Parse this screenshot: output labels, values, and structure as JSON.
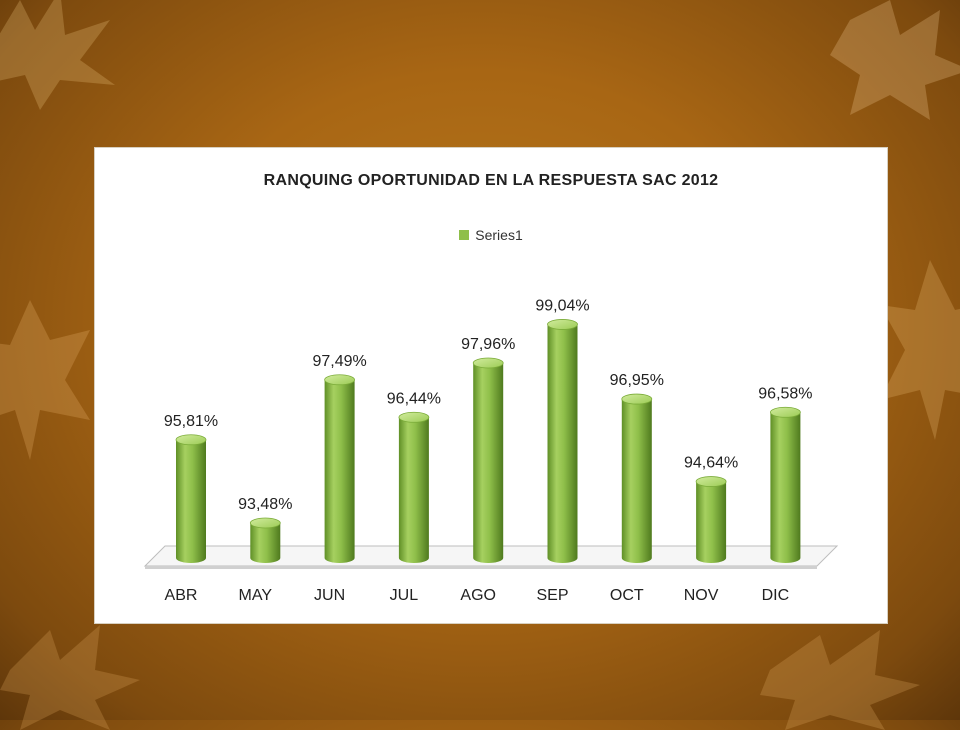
{
  "colors": {
    "bar": "#8fbf4a",
    "bar_dark": "#5f8f26",
    "bar_light": "#c2e08a",
    "floor": "#f4f4f4",
    "background": "#a86614"
  },
  "chart_data": {
    "type": "bar",
    "title": "RANQUING OPORTUNIDAD EN LA RESPUESTA SAC 2012",
    "categories": [
      "ABR",
      "MAY",
      "JUN",
      "JUL",
      "AGO",
      "SEP",
      "OCT",
      "NOV",
      "DIC"
    ],
    "series": [
      {
        "name": "Series1",
        "values": [
          95.81,
          93.48,
          97.49,
          96.44,
          97.96,
          99.04,
          96.95,
          94.64,
          96.58
        ],
        "labels": [
          "95,81%",
          "93,48%",
          "97,49%",
          "96,44%",
          "97,96%",
          "99,04%",
          "96,95%",
          "94,64%",
          "96,58%"
        ]
      }
    ],
    "ylim": [
      92.5,
      99.5
    ],
    "grid": false,
    "legend_position": "top",
    "style": "3d-cylinder"
  }
}
